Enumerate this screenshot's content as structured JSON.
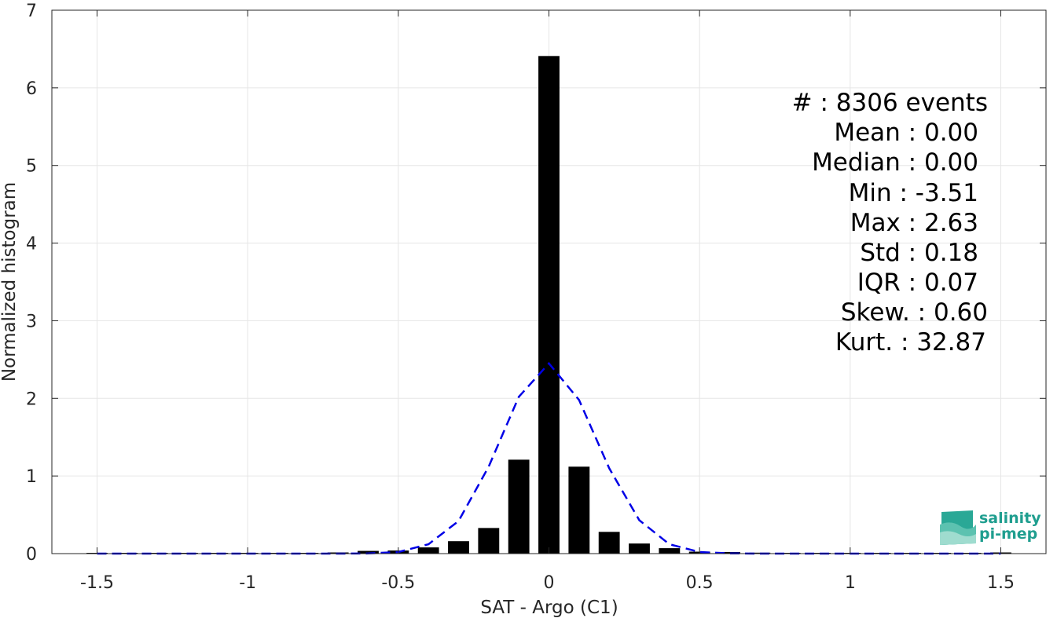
{
  "chart_data": {
    "type": "bar",
    "xlabel": "SAT - Argo (C1)",
    "ylabel": "Normalized histogram",
    "xlim": [
      -1.65,
      1.65
    ],
    "ylim": [
      0,
      7
    ],
    "xticks": [
      -1.5,
      -1,
      -0.5,
      0,
      0.5,
      1,
      1.5
    ],
    "xtick_labels": [
      "-1.5",
      "-1",
      "-0.5",
      "0",
      "0.5",
      "1",
      "1.5"
    ],
    "yticks": [
      0,
      1,
      2,
      3,
      4,
      5,
      6,
      7
    ],
    "ytick_labels": [
      "0",
      "1",
      "2",
      "3",
      "4",
      "5",
      "6",
      "7"
    ],
    "grid": true,
    "bar_width": 0.07,
    "bars": {
      "x": [
        -1.5,
        -1.4,
        -1.3,
        -1.2,
        -1.1,
        -1.0,
        -0.9,
        -0.8,
        -0.7,
        -0.6,
        -0.5,
        -0.4,
        -0.3,
        -0.2,
        -0.1,
        0.0,
        0.1,
        0.2,
        0.3,
        0.4,
        0.5,
        0.6,
        0.7,
        0.8,
        0.9,
        1.0,
        1.1,
        1.2,
        1.3,
        1.4,
        1.5
      ],
      "values": [
        0.002,
        0.002,
        0.002,
        0.002,
        0.002,
        0.003,
        0.003,
        0.005,
        0.015,
        0.035,
        0.04,
        0.08,
        0.16,
        0.33,
        1.21,
        6.41,
        1.12,
        0.28,
        0.13,
        0.07,
        0.025,
        0.02,
        0.012,
        0.005,
        0.003,
        0.002,
        0.002,
        0.002,
        0.002,
        0.002,
        0.015
      ],
      "color": "#000000"
    },
    "fit_curve": {
      "x": [
        -1.5,
        -1.4,
        -1.3,
        -1.2,
        -1.1,
        -1.0,
        -0.9,
        -0.8,
        -0.7,
        -0.6,
        -0.5,
        -0.4,
        -0.3,
        -0.2,
        -0.1,
        0.0,
        0.1,
        0.2,
        0.3,
        0.4,
        0.5,
        0.6,
        0.7,
        0.8,
        0.9,
        1.0,
        1.1,
        1.2,
        1.3,
        1.4,
        1.5
      ],
      "values": [
        0,
        0,
        0,
        0,
        0,
        0,
        0,
        0,
        0,
        0.002,
        0.02,
        0.12,
        0.42,
        1.12,
        2.02,
        2.45,
        1.98,
        1.1,
        0.43,
        0.12,
        0.02,
        0.003,
        0,
        0,
        0,
        0,
        0,
        0,
        0,
        0,
        0
      ],
      "color": "#0000e6",
      "style": "dashed"
    },
    "stats": [
      "#  : 8306 events",
      "Mean : 0.00",
      "Median : 0.00",
      "Min : -3.51",
      "Max : 2.63",
      "Std : 0.18",
      "IQR : 0.07",
      "Skew. : 0.60",
      "Kurt. : 32.87"
    ]
  },
  "logo": {
    "line1": "salinity",
    "line2": "pi-mep",
    "color": "#1f9e8f"
  }
}
